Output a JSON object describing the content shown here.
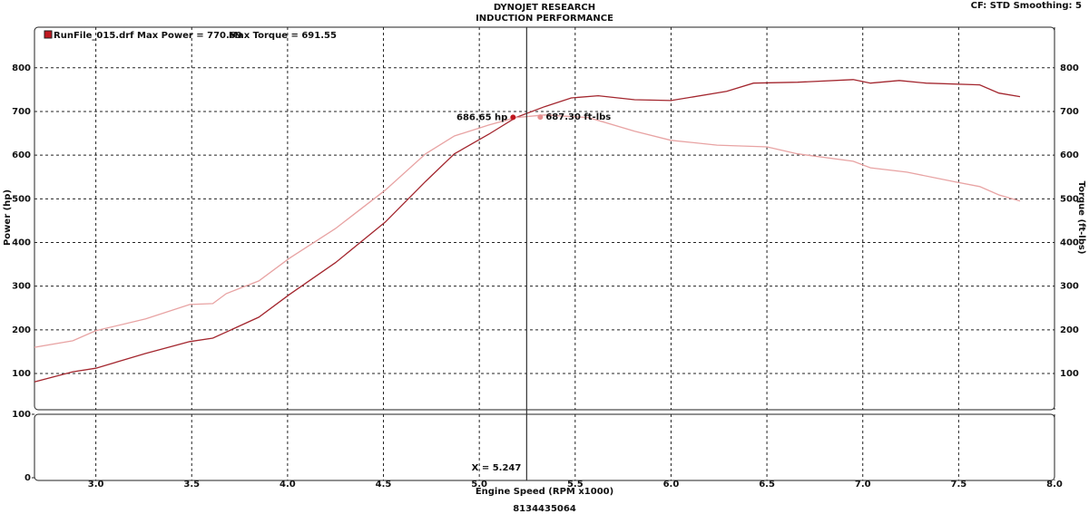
{
  "chart_data": [
    {
      "type": "line",
      "title": "DYNOJET RESEARCH",
      "subtitle": "INDUCTION PERFORMANCE",
      "info": "CF: STD  Smoothing: 5",
      "legend_text": "RunFile_015.drf Max Power = 770.69",
      "legend_text_2": "Max Torque = 691.55",
      "y_label": "Power (hp)",
      "y2_label": "Torque (ft-lbs)",
      "grid": true,
      "xlim": [
        2.68,
        8.0
      ],
      "xticks": [
        {
          "value": 3,
          "label": "3.0"
        },
        3.5,
        {
          "value": 4,
          "label": "4.0"
        },
        4.5,
        {
          "value": 5,
          "label": "5.0"
        },
        5.5,
        {
          "value": 6,
          "label": "6.0"
        },
        6.5,
        {
          "value": 7,
          "label": "7.0"
        },
        7.5,
        {
          "value": 8,
          "label": "8.0"
        }
      ],
      "ylim": [
        17,
        893
      ],
      "yticks": [
        100,
        200,
        300,
        400,
        500,
        600,
        700,
        800
      ],
      "y2lim": [
        17,
        893
      ],
      "y2ticks": [
        100,
        200,
        300,
        400,
        500,
        600,
        700,
        800
      ],
      "cursor_x": 5.247,
      "annotations": [
        {
          "text": "686.65 hp",
          "x": 5.247,
          "y": 686.65,
          "color": "#c01820"
        },
        {
          "text": "687.30 ft-lbs",
          "x": 5.247,
          "y": 687.3,
          "color": "#e89090"
        }
      ],
      "series": [
        {
          "name": "Power",
          "color": "#a3262e",
          "x": [
            2.68,
            2.88,
            3.0,
            3.26,
            3.49,
            3.61,
            3.85,
            4.01,
            4.25,
            4.51,
            4.72,
            4.87,
            5.05,
            5.19,
            5.34,
            5.48,
            5.62,
            5.81,
            6.0,
            6.29,
            6.43,
            6.66,
            6.95,
            7.04,
            7.19,
            7.33,
            7.61,
            7.71,
            7.82
          ],
          "values": [
            81,
            104,
            112,
            146,
            173,
            181,
            229,
            281,
            354,
            447,
            540,
            603,
            648,
            686,
            711,
            731,
            736,
            727,
            725,
            746,
            765,
            767,
            773,
            765,
            771,
            765,
            761,
            742,
            734
          ]
        },
        {
          "name": "Torque",
          "color": "#e8a3a3",
          "axis": "y2",
          "x": [
            2.68,
            2.88,
            3.0,
            3.26,
            3.49,
            3.61,
            3.68,
            3.85,
            4.01,
            4.25,
            4.51,
            4.72,
            4.87,
            5.05,
            5.19,
            5.34,
            5.57,
            5.81,
            6.0,
            6.24,
            6.5,
            6.66,
            6.95,
            7.04,
            7.23,
            7.47,
            7.61,
            7.71,
            7.82
          ],
          "values": [
            160,
            175,
            198,
            225,
            258,
            260,
            283,
            312,
            364,
            432,
            520,
            603,
            644,
            669,
            686,
            692,
            686,
            655,
            634,
            623,
            619,
            603,
            586,
            571,
            561,
            540,
            528,
            509,
            495
          ]
        }
      ]
    },
    {
      "type": "line",
      "x_label": "Engine Speed (RPM x1000)",
      "footnote": "8134435064",
      "cursor_label": "X = 5.247",
      "grid": true,
      "ylim": [
        0,
        100
      ],
      "yticks": [
        0,
        100
      ]
    }
  ]
}
